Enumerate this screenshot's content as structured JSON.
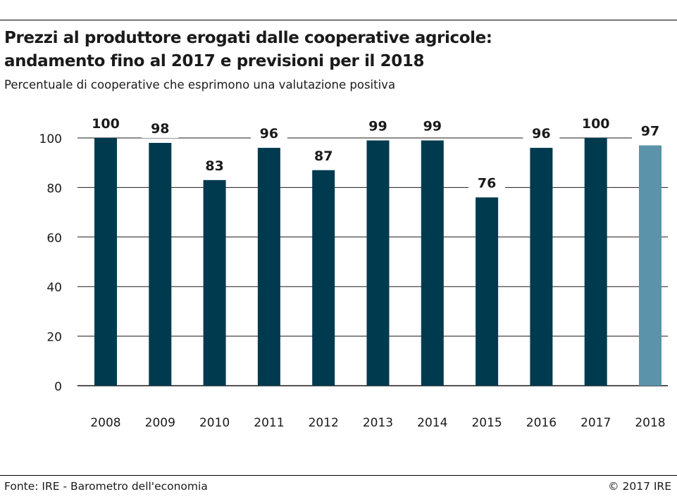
{
  "header": {
    "title_line1": "Prezzi al produttore erogati dalle cooperative agricole:",
    "title_line2": "andamento fino al 2017 e previsioni per il 2018",
    "subtitle": "Percentuale di cooperative che esprimono una valutazione positiva"
  },
  "footer": {
    "source": "Fonte: IRE - Barometro dell'economia",
    "copyright": "© 2017 IRE"
  },
  "colors": {
    "actual_bar": "#003a4f",
    "forecast_bar": "#5a93aa",
    "gridline": "#1a1a1a",
    "text": "#1a1a1a"
  },
  "chart_data": {
    "type": "bar",
    "categories": [
      "2008",
      "2009",
      "2010",
      "2011",
      "2012",
      "2013",
      "2014",
      "2015",
      "2016",
      "2017",
      "2018"
    ],
    "values": [
      100,
      98,
      83,
      96,
      87,
      99,
      99,
      76,
      96,
      100,
      97
    ],
    "value_labels": [
      "100",
      "98",
      "83",
      "96",
      "87",
      "99",
      "99",
      "76",
      "96",
      "100",
      "97"
    ],
    "forecast_categories": [
      "2018"
    ],
    "yticks": [
      0,
      20,
      40,
      60,
      80,
      100
    ],
    "ylim": [
      0,
      100
    ],
    "grid": true,
    "legend": "none",
    "title": "Prezzi al produttore erogati dalle cooperative agricole: andamento fino al 2017 e previsioni per il 2018",
    "subtitle": "Percentuale di cooperative che esprimono una valutazione positiva",
    "xlabel": "",
    "ylabel": ""
  }
}
